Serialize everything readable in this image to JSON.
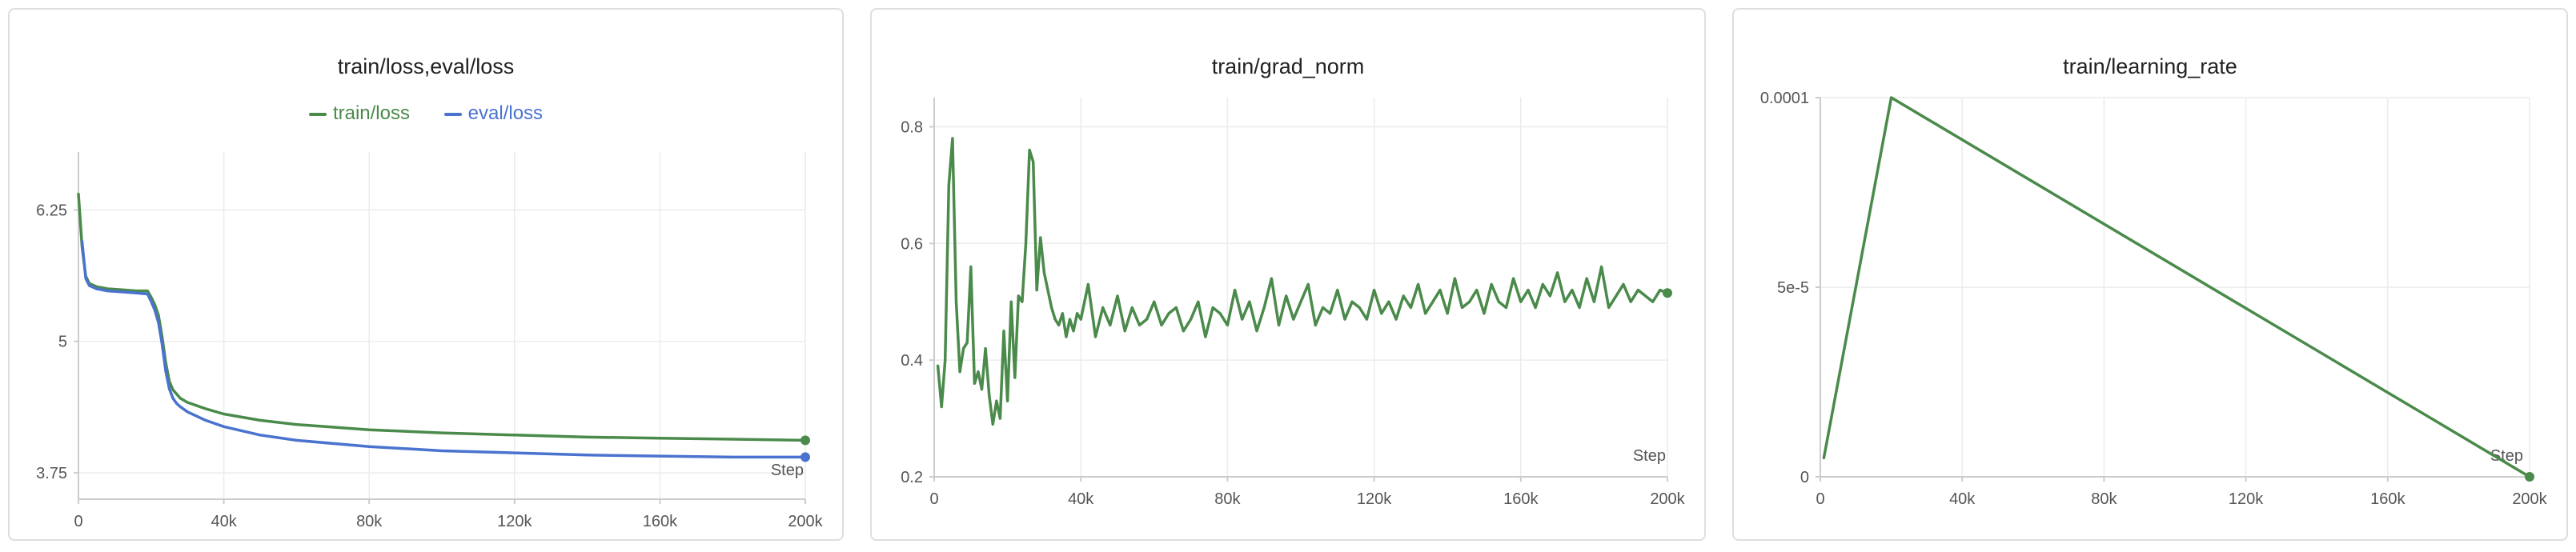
{
  "chart_data": [
    {
      "type": "line",
      "title": "train/loss,eval/loss",
      "xlabel": "Step",
      "ylabel": "",
      "xlim": [
        0,
        200000
      ],
      "ylim": [
        3.5,
        6.8
      ],
      "xticks": [
        0,
        40000,
        80000,
        120000,
        160000,
        200000
      ],
      "xtick_labels": [
        "0",
        "40k",
        "80k",
        "120k",
        "160k",
        "200k"
      ],
      "yticks": [
        3.75,
        5,
        6.25
      ],
      "ytick_labels": [
        "3.75",
        "5",
        "6.25"
      ],
      "grid": true,
      "legend": "top-center",
      "series": [
        {
          "name": "train/loss",
          "color": "#4a8a4a",
          "x": [
            0,
            1000,
            2000,
            3000,
            5000,
            8000,
            12000,
            16000,
            19000,
            20000,
            21000,
            22000,
            23000,
            24000,
            25000,
            26000,
            27000,
            28000,
            30000,
            35000,
            40000,
            50000,
            60000,
            80000,
            100000,
            120000,
            140000,
            160000,
            180000,
            200000
          ],
          "y": [
            6.4,
            5.9,
            5.62,
            5.55,
            5.52,
            5.5,
            5.49,
            5.48,
            5.48,
            5.42,
            5.35,
            5.25,
            5.05,
            4.8,
            4.62,
            4.54,
            4.5,
            4.46,
            4.42,
            4.36,
            4.31,
            4.25,
            4.21,
            4.16,
            4.13,
            4.11,
            4.09,
            4.08,
            4.07,
            4.06
          ]
        },
        {
          "name": "eval/loss",
          "color": "#4a72cf",
          "x": [
            1000,
            2000,
            3000,
            5000,
            8000,
            12000,
            16000,
            19000,
            20000,
            21000,
            22000,
            23000,
            24000,
            25000,
            26000,
            27000,
            28000,
            30000,
            35000,
            40000,
            50000,
            60000,
            80000,
            100000,
            120000,
            140000,
            160000,
            180000,
            200000
          ],
          "y": [
            5.95,
            5.6,
            5.53,
            5.5,
            5.48,
            5.47,
            5.46,
            5.45,
            5.38,
            5.3,
            5.18,
            4.98,
            4.72,
            4.55,
            4.46,
            4.41,
            4.38,
            4.33,
            4.25,
            4.19,
            4.11,
            4.06,
            4.0,
            3.96,
            3.94,
            3.92,
            3.91,
            3.9,
            3.9
          ]
        }
      ]
    },
    {
      "type": "line",
      "title": "train/grad_norm",
      "xlabel": "Step",
      "ylabel": "",
      "xlim": [
        0,
        200000
      ],
      "ylim": [
        0.2,
        0.85
      ],
      "xticks": [
        0,
        40000,
        80000,
        120000,
        160000,
        200000
      ],
      "xtick_labels": [
        "0",
        "40k",
        "80k",
        "120k",
        "160k",
        "200k"
      ],
      "yticks": [
        0.2,
        0.4,
        0.6,
        0.8
      ],
      "ytick_labels": [
        "0.2",
        "0.4",
        "0.6",
        "0.8"
      ],
      "grid": true,
      "legend": "none",
      "series": [
        {
          "name": "",
          "color": "#4a8a4a",
          "x": [
            1000,
            2000,
            3000,
            4000,
            5000,
            6000,
            7000,
            8000,
            9000,
            10000,
            11000,
            12000,
            13000,
            14000,
            15000,
            16000,
            17000,
            18000,
            19000,
            20000,
            21000,
            22000,
            23000,
            24000,
            25000,
            26000,
            27000,
            28000,
            29000,
            30000,
            31000,
            32000,
            33000,
            34000,
            35000,
            36000,
            37000,
            38000,
            39000,
            40000,
            42000,
            44000,
            46000,
            48000,
            50000,
            52000,
            54000,
            56000,
            58000,
            60000,
            62000,
            64000,
            66000,
            68000,
            70000,
            72000,
            74000,
            76000,
            78000,
            80000,
            82000,
            84000,
            86000,
            88000,
            90000,
            92000,
            94000,
            96000,
            98000,
            100000,
            102000,
            104000,
            106000,
            108000,
            110000,
            112000,
            114000,
            116000,
            118000,
            120000,
            122000,
            124000,
            126000,
            128000,
            130000,
            132000,
            134000,
            136000,
            138000,
            140000,
            142000,
            144000,
            146000,
            148000,
            150000,
            152000,
            154000,
            156000,
            158000,
            160000,
            162000,
            164000,
            166000,
            168000,
            170000,
            172000,
            174000,
            176000,
            178000,
            180000,
            182000,
            184000,
            186000,
            188000,
            190000,
            192000,
            194000,
            196000,
            198000,
            200000
          ],
          "y": [
            0.39,
            0.32,
            0.4,
            0.7,
            0.78,
            0.5,
            0.38,
            0.42,
            0.43,
            0.56,
            0.36,
            0.38,
            0.35,
            0.42,
            0.34,
            0.29,
            0.33,
            0.3,
            0.45,
            0.33,
            0.5,
            0.37,
            0.51,
            0.5,
            0.6,
            0.76,
            0.74,
            0.52,
            0.61,
            0.55,
            0.52,
            0.49,
            0.47,
            0.46,
            0.48,
            0.44,
            0.47,
            0.45,
            0.48,
            0.47,
            0.53,
            0.44,
            0.49,
            0.46,
            0.51,
            0.45,
            0.49,
            0.46,
            0.47,
            0.5,
            0.46,
            0.48,
            0.49,
            0.45,
            0.47,
            0.5,
            0.44,
            0.49,
            0.48,
            0.46,
            0.52,
            0.47,
            0.5,
            0.45,
            0.49,
            0.54,
            0.46,
            0.51,
            0.47,
            0.5,
            0.53,
            0.46,
            0.49,
            0.48,
            0.52,
            0.47,
            0.5,
            0.49,
            0.47,
            0.52,
            0.48,
            0.5,
            0.47,
            0.51,
            0.49,
            0.53,
            0.48,
            0.5,
            0.52,
            0.48,
            0.54,
            0.49,
            0.5,
            0.52,
            0.48,
            0.53,
            0.5,
            0.49,
            0.54,
            0.5,
            0.52,
            0.49,
            0.53,
            0.51,
            0.55,
            0.5,
            0.52,
            0.49,
            0.54,
            0.5,
            0.56,
            0.49,
            0.51,
            0.53,
            0.5,
            0.52,
            0.51,
            0.5,
            0.52,
            0.515
          ]
        }
      ]
    },
    {
      "type": "line",
      "title": "train/learning_rate",
      "xlabel": "Step",
      "ylabel": "",
      "xlim": [
        0,
        200000
      ],
      "ylim": [
        0,
        0.0001
      ],
      "xticks": [
        0,
        40000,
        80000,
        120000,
        160000,
        200000
      ],
      "xtick_labels": [
        "0",
        "40k",
        "80k",
        "120k",
        "160k",
        "200k"
      ],
      "yticks": [
        0,
        5e-05,
        0.0001
      ],
      "ytick_labels": [
        "0",
        "5e-5",
        "0.0001"
      ],
      "grid": true,
      "legend": "none",
      "series": [
        {
          "name": "",
          "color": "#4a8a4a",
          "x": [
            1000,
            20000,
            200000
          ],
          "y": [
            5e-06,
            0.0001,
            0.0
          ]
        }
      ]
    }
  ]
}
